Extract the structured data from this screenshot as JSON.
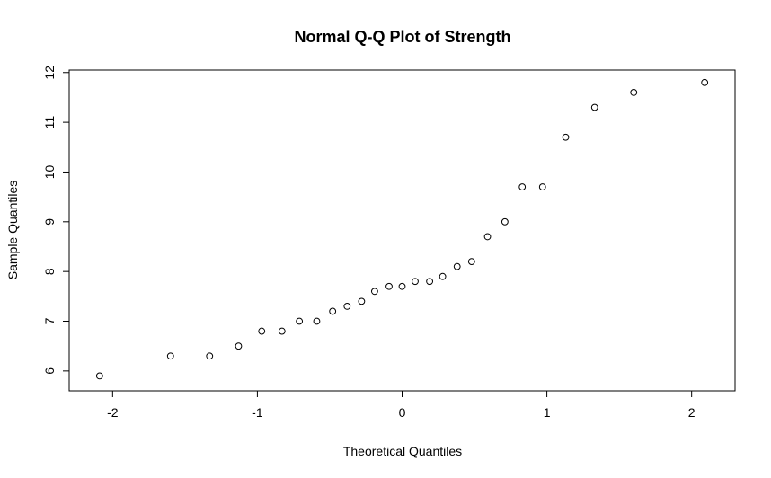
{
  "chart_data": {
    "type": "scatter",
    "title": "Normal Q-Q Plot of Strength",
    "xlabel": "Theoretical Quantiles",
    "ylabel": "Sample Quantiles",
    "xlim": [
      -2.3,
      2.3
    ],
    "ylim": [
      5.6,
      12.05
    ],
    "x_ticks": [
      -2,
      -1,
      0,
      1,
      2
    ],
    "x_tick_labels": [
      "-2",
      "-1",
      "0",
      "1",
      "2"
    ],
    "y_ticks": [
      6,
      7,
      8,
      9,
      10,
      11,
      12
    ],
    "y_tick_labels": [
      "6",
      "7",
      "8",
      "9",
      "10",
      "11",
      "12"
    ],
    "grid": false,
    "points": [
      {
        "x": -2.09,
        "y": 5.9
      },
      {
        "x": -1.6,
        "y": 6.3
      },
      {
        "x": -1.33,
        "y": 6.3
      },
      {
        "x": -1.13,
        "y": 6.5
      },
      {
        "x": -0.97,
        "y": 6.8
      },
      {
        "x": -0.83,
        "y": 6.8
      },
      {
        "x": -0.71,
        "y": 7.0
      },
      {
        "x": -0.59,
        "y": 7.0
      },
      {
        "x": -0.48,
        "y": 7.2
      },
      {
        "x": -0.38,
        "y": 7.3
      },
      {
        "x": -0.28,
        "y": 7.4
      },
      {
        "x": -0.19,
        "y": 7.6
      },
      {
        "x": -0.09,
        "y": 7.7
      },
      {
        "x": 0.0,
        "y": 7.7
      },
      {
        "x": 0.09,
        "y": 7.8
      },
      {
        "x": 0.19,
        "y": 7.8
      },
      {
        "x": 0.28,
        "y": 7.9
      },
      {
        "x": 0.38,
        "y": 8.1
      },
      {
        "x": 0.48,
        "y": 8.2
      },
      {
        "x": 0.59,
        "y": 8.7
      },
      {
        "x": 0.71,
        "y": 9.0
      },
      {
        "x": 0.83,
        "y": 9.7
      },
      {
        "x": 0.97,
        "y": 9.7
      },
      {
        "x": 1.13,
        "y": 10.7
      },
      {
        "x": 1.33,
        "y": 11.3
      },
      {
        "x": 1.6,
        "y": 11.6
      },
      {
        "x": 2.09,
        "y": 11.8
      }
    ]
  }
}
